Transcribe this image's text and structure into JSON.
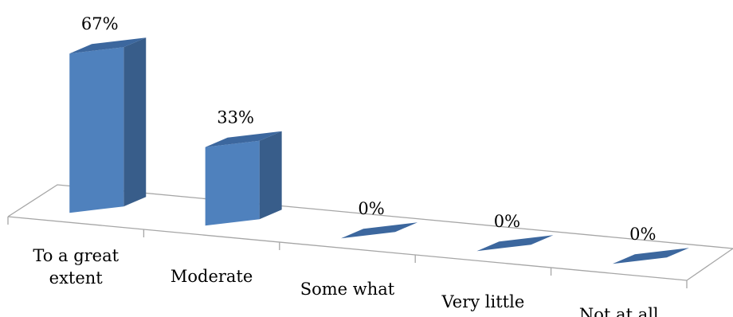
{
  "chart_data": {
    "type": "bar",
    "style": "3d-column",
    "categories": [
      [
        "To a great",
        "extent"
      ],
      [
        "Moderate"
      ],
      [
        "Some what"
      ],
      [
        "Very little"
      ],
      [
        "Not at all"
      ]
    ],
    "values": [
      67,
      33,
      0,
      0,
      0
    ],
    "data_labels": [
      "67%",
      "33%",
      "0%",
      "0%",
      "0%"
    ],
    "unit": "%",
    "ylim": [
      0,
      70
    ],
    "title": "",
    "xlabel": "",
    "ylabel": "",
    "legend": "none",
    "grid": false,
    "colors": {
      "bar_front": "#4F81BD",
      "bar_side": "#385D8A",
      "bar_top": "#3C679E",
      "floor_line": "#A6A6A6"
    }
  }
}
